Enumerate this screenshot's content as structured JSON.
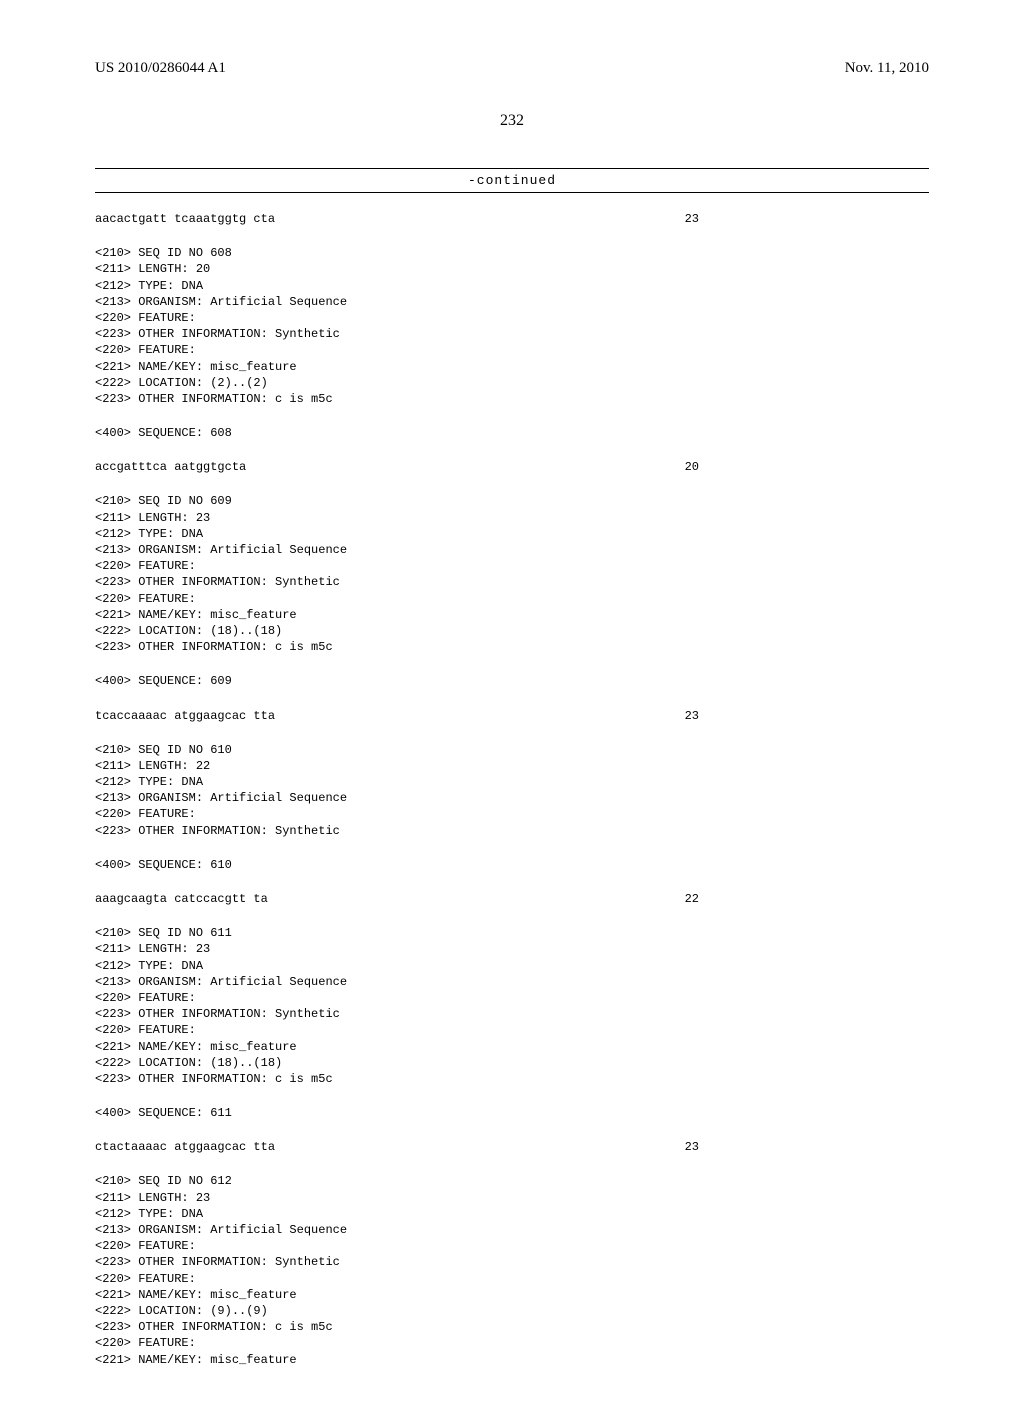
{
  "header": {
    "pub_number": "US 2010/0286044 A1",
    "pub_date": "Nov. 11, 2010"
  },
  "page_number": "232",
  "continued_label": "-continued",
  "blocks": [
    {
      "type": "seqrow",
      "sequence": "aacactgatt tcaaatggtg cta",
      "length": "23"
    },
    {
      "type": "text",
      "lines": [
        "<210> SEQ ID NO 608",
        "<211> LENGTH: 20",
        "<212> TYPE: DNA",
        "<213> ORGANISM: Artificial Sequence",
        "<220> FEATURE:",
        "<223> OTHER INFORMATION: Synthetic",
        "<220> FEATURE:",
        "<221> NAME/KEY: misc_feature",
        "<222> LOCATION: (2)..(2)",
        "<223> OTHER INFORMATION: c is m5c"
      ]
    },
    {
      "type": "text",
      "lines": [
        "<400> SEQUENCE: 608"
      ]
    },
    {
      "type": "seqrow",
      "sequence": "accgatttca aatggtgcta",
      "length": "20"
    },
    {
      "type": "text",
      "lines": [
        "<210> SEQ ID NO 609",
        "<211> LENGTH: 23",
        "<212> TYPE: DNA",
        "<213> ORGANISM: Artificial Sequence",
        "<220> FEATURE:",
        "<223> OTHER INFORMATION: Synthetic",
        "<220> FEATURE:",
        "<221> NAME/KEY: misc_feature",
        "<222> LOCATION: (18)..(18)",
        "<223> OTHER INFORMATION: c is m5c"
      ]
    },
    {
      "type": "text",
      "lines": [
        "<400> SEQUENCE: 609"
      ]
    },
    {
      "type": "seqrow",
      "sequence": "tcaccaaaac atggaagcac tta",
      "length": "23"
    },
    {
      "type": "text",
      "lines": [
        "<210> SEQ ID NO 610",
        "<211> LENGTH: 22",
        "<212> TYPE: DNA",
        "<213> ORGANISM: Artificial Sequence",
        "<220> FEATURE:",
        "<223> OTHER INFORMATION: Synthetic"
      ]
    },
    {
      "type": "text",
      "lines": [
        "<400> SEQUENCE: 610"
      ]
    },
    {
      "type": "seqrow",
      "sequence": "aaagcaagta catccacgtt ta",
      "length": "22"
    },
    {
      "type": "text",
      "lines": [
        "<210> SEQ ID NO 611",
        "<211> LENGTH: 23",
        "<212> TYPE: DNA",
        "<213> ORGANISM: Artificial Sequence",
        "<220> FEATURE:",
        "<223> OTHER INFORMATION: Synthetic",
        "<220> FEATURE:",
        "<221> NAME/KEY: misc_feature",
        "<222> LOCATION: (18)..(18)",
        "<223> OTHER INFORMATION: c is m5c"
      ]
    },
    {
      "type": "text",
      "lines": [
        "<400> SEQUENCE: 611"
      ]
    },
    {
      "type": "seqrow",
      "sequence": "ctactaaaac atggaagcac tta",
      "length": "23"
    },
    {
      "type": "text",
      "lines": [
        "<210> SEQ ID NO 612",
        "<211> LENGTH: 23",
        "<212> TYPE: DNA",
        "<213> ORGANISM: Artificial Sequence",
        "<220> FEATURE:",
        "<223> OTHER INFORMATION: Synthetic",
        "<220> FEATURE:",
        "<221> NAME/KEY: misc_feature",
        "<222> LOCATION: (9)..(9)",
        "<223> OTHER INFORMATION: c is m5c",
        "<220> FEATURE:",
        "<221> NAME/KEY: misc_feature"
      ]
    }
  ]
}
